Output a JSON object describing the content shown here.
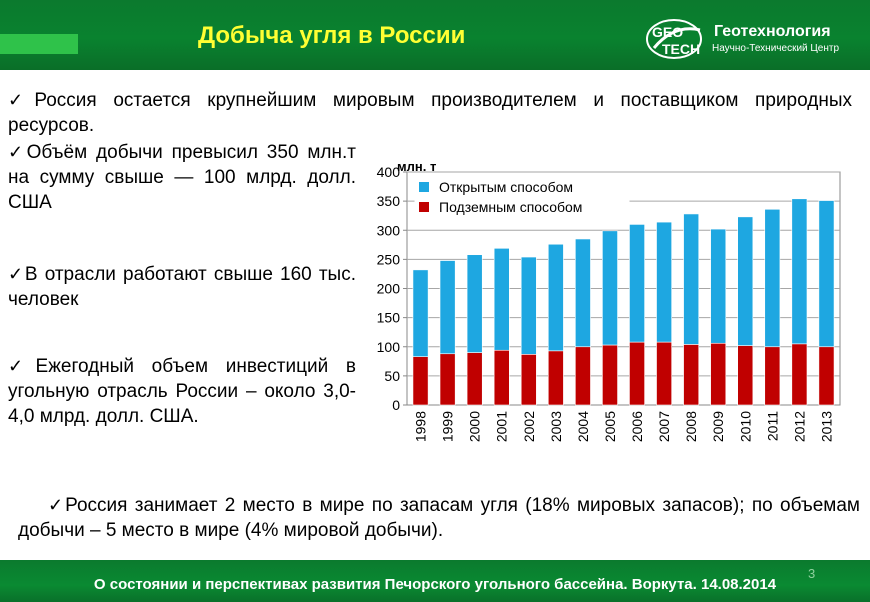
{
  "header": {
    "title": "Добыча угля в России"
  },
  "logo": {
    "mark": "GEO TECH",
    "name": "Геотехнология",
    "subtitle": "Научно-Технический Центр"
  },
  "bullets": [
    {
      "check": "✓",
      "text": "Россия остается крупнейшим мировым производителем и поставщиком природных ресурсов."
    },
    {
      "check": "✓",
      "text": "Объём добычи превысил 350 млн.т на сумму свыше — 100 млрд. долл. США"
    },
    {
      "check": "✓",
      "text": "В отрасли работают свыше 160 тыс. человек"
    },
    {
      "check": "✓",
      "text": "Ежегодный объем инвестиций в угольную отрасль России – около 3,0- 4,0 млрд. долл. США."
    },
    {
      "check": "✓",
      "text": "Россия занимает 2 место в мире по запасам угля (18% мировых запасов); по объемам добычи – 5 место в мире (4% мировой добычи)."
    }
  ],
  "footer": {
    "text": "О состоянии и перспективах развития Печорского угольного бассейна. Воркута. 14.08.2014",
    "page_number": "3"
  },
  "chart_data": {
    "type": "bar",
    "stacked": true,
    "ylabel": "млн. т",
    "ylim": [
      0,
      400
    ],
    "yticks": [
      0,
      50,
      100,
      150,
      200,
      250,
      300,
      350,
      400
    ],
    "grid": true,
    "legend_position": "top-left",
    "categories": [
      "1998",
      "1999",
      "2000",
      "2001",
      "2002",
      "2003",
      "2004",
      "2005",
      "2006",
      "2007",
      "2008",
      "2009",
      "2010",
      "2011",
      "2012",
      "2013"
    ],
    "series": [
      {
        "name": "Подземным способом",
        "color": "#c00000",
        "values": [
          83,
          88,
          90,
          94,
          87,
          93,
          100,
          103,
          108,
          108,
          104,
          106,
          102,
          100,
          105,
          100
        ]
      },
      {
        "name": "Открытым способом",
        "color": "#1ea7e1",
        "values": [
          149,
          160,
          168,
          175,
          167,
          183,
          185,
          196,
          202,
          206,
          224,
          196,
          221,
          236,
          249,
          251
        ]
      }
    ]
  }
}
